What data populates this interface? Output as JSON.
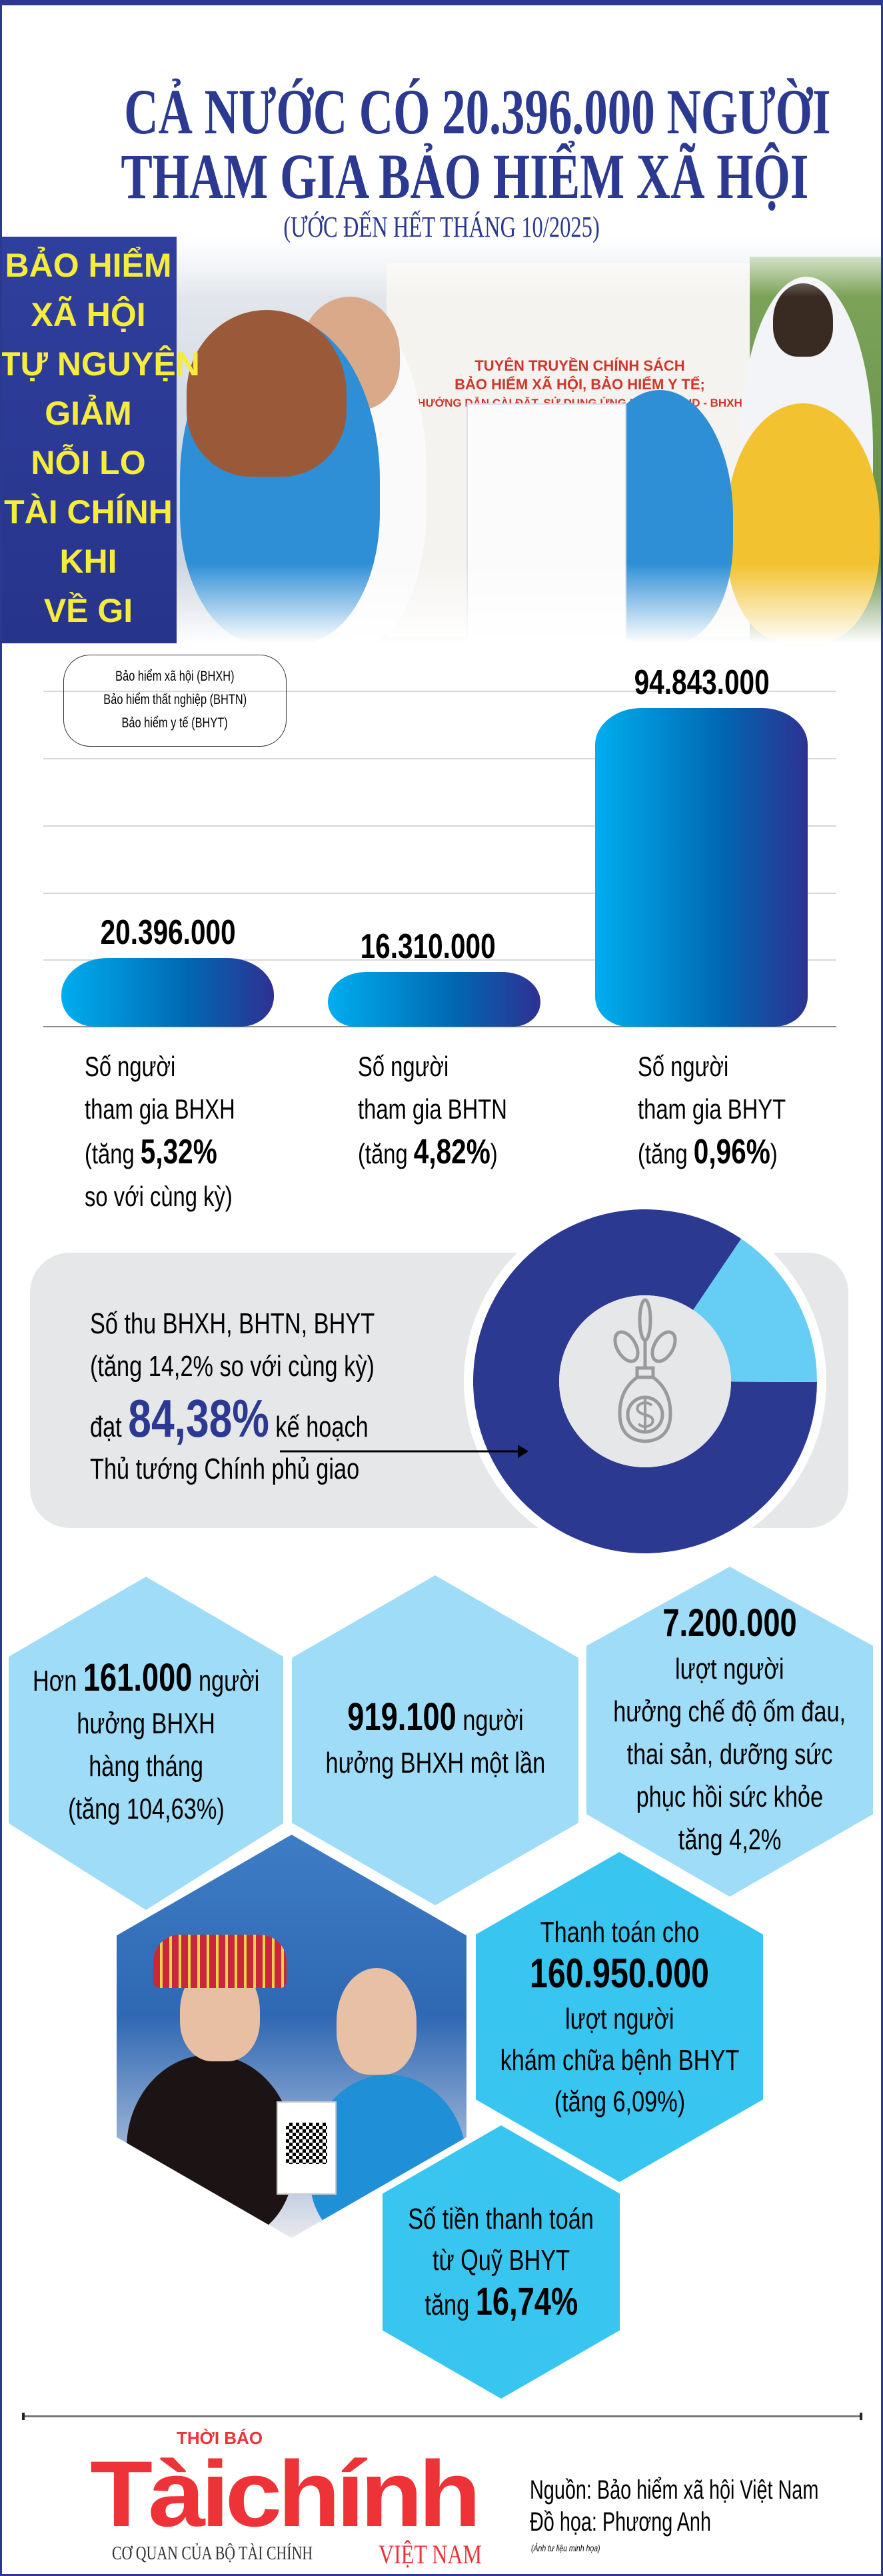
{
  "header": {
    "title_line1": "CẢ NƯỚC CÓ 20.396.000 NGƯỜI",
    "title_line2": "THAM GIA BẢO HIỂM XÃ HỘI",
    "subtitle": "(ƯỚC ĐẾN HẾT THÁNG 10/2025)"
  },
  "photo_top": {
    "banner_lines": [
      "BẢO HIỂM",
      "XÃ HỘI",
      "TỰ NGUYỆN",
      "GIẢM",
      "NỖI LO",
      "TÀI CHÍNH",
      "KHI",
      "VỀ GI"
    ],
    "booth_sign": [
      "TUYÊN TRUYỀN CHÍNH SÁCH",
      "BẢO HIỂM XÃ HỘI, BẢO HIỂM Y TẾ;",
      "HƯỚNG DẪN CÀI ĐẶT, SỬ DỤNG ỨNG DỤNG VSSID - BHXH SỐ"
    ]
  },
  "legend": [
    "Bảo hiểm xã hội (BHXH)",
    "Bảo hiểm thất nghiệp (BHTN)",
    "Bảo hiểm y tế (BHYT)"
  ],
  "chart_data": {
    "type": "bar",
    "title": "",
    "xlabel": "",
    "ylabel": "",
    "ylim": [
      0,
      100000000
    ],
    "grid": true,
    "categories": [
      "BHXH",
      "BHTN",
      "BHYT"
    ],
    "values": [
      20396000,
      16310000,
      94843000
    ],
    "value_labels": [
      "20.396.000",
      "16.310.000",
      "94.843.000"
    ],
    "category_labels": [
      {
        "l1": "Số người",
        "l2": "tham gia BHXH",
        "l3_pre": "(tăng ",
        "l3_bold": "5,32%",
        "l3_post": "",
        "l4": "so với cùng kỳ)"
      },
      {
        "l1": "Số người",
        "l2": "tham gia BHTN",
        "l3_pre": "(tăng ",
        "l3_bold": "4,82%",
        "l3_post": ")",
        "l4": ""
      },
      {
        "l1": "Số người",
        "l2": "tham gia BHYT",
        "l3_pre": "(tăng ",
        "l3_bold": "0,96%",
        "l3_post": ")",
        "l4": ""
      }
    ],
    "colors": {
      "start": "#00aeef",
      "end": "#2e3192"
    }
  },
  "revenue": {
    "line1": "Số thu BHXH, BHTN, BHYT",
    "line2": "(tăng 14,2% so với cùng kỳ)",
    "line3_pre": "đạt",
    "line3_big": "84,38%",
    "line3_post": "kế hoạch",
    "line4": "Thủ tướng Chính phủ giao",
    "achieved_percent": 84.38,
    "icon": "money-plant-icon",
    "colors": {
      "achieved": "#2b3990",
      "remaining": "#66cef5"
    }
  },
  "stats": [
    {
      "pre": "Hơn ",
      "bold": "161.000",
      "post": " người",
      "lines": [
        "hưởng BHXH",
        "hàng tháng",
        "(tăng 104,63%)"
      ]
    },
    {
      "pre": "",
      "bold": "919.100",
      "post": " người",
      "lines": [
        "hưởng BHXH một lần"
      ]
    },
    {
      "pre": "",
      "bold": "7.200.000",
      "post": "",
      "lines": [
        "lượt người",
        "hưởng chế độ ốm đau,",
        "thai sản, dưỡng sức",
        "phục hồi sức khỏe",
        "tăng 4,2%"
      ]
    },
    {
      "top": "Thanh toán cho",
      "bold": "160.950.000",
      "lines": [
        "lượt người",
        "khám chữa bệnh BHYT",
        "(tăng 6,09%)"
      ]
    },
    {
      "lines": [
        "Số tiền thanh toán",
        "từ Quỹ BHYT"
      ],
      "pre": "tăng ",
      "bold": "16,74%"
    }
  ],
  "footer": {
    "logo_top": "THỜI BÁO",
    "logo_main": "Tàichính",
    "logo_sub": "VIỆT NAM",
    "logo_tagline": "CƠ QUAN CỦA BỘ TÀI CHÍNH",
    "source": "Nguồn: Bảo hiểm xã hội Việt Nam",
    "graphics": "Đồ họa: Phương Anh",
    "photo_note": "(Ảnh tư liệu minh họa)"
  }
}
